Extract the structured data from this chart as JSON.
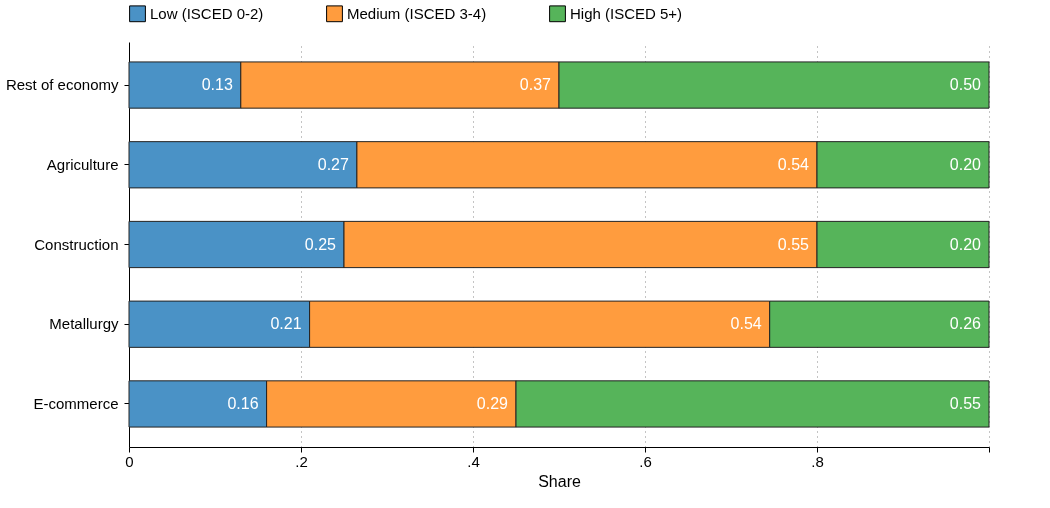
{
  "chart_data": {
    "type": "bar",
    "orientation": "horizontal",
    "stacked": true,
    "xlabel": "Share",
    "categories": [
      "Rest of economy",
      "Agriculture",
      "Construction",
      "Metallurgy",
      "E-commerce"
    ],
    "series": [
      {
        "name": "Low (ISCED 0-2)",
        "color": "#4a92c6",
        "values": [
          0.13,
          0.265,
          0.25,
          0.21,
          0.16
        ],
        "value_labels": [
          "0.13",
          "0.27",
          "0.25",
          "0.21",
          "0.16"
        ]
      },
      {
        "name": "Medium (ISCED 3-4)",
        "color": "#ff9c3e",
        "values": [
          0.37,
          0.535,
          0.55,
          0.535,
          0.29
        ],
        "value_labels": [
          "0.37",
          "0.54",
          "0.55",
          "0.54",
          "0.29"
        ]
      },
      {
        "name": "High (ISCED 5+)",
        "color": "#56b45a",
        "values": [
          0.5,
          0.2,
          0.2,
          0.255,
          0.55
        ],
        "value_labels": [
          "0.50",
          "0.20",
          "0.20",
          "0.26",
          "0.55"
        ]
      }
    ],
    "xlim": [
      0,
      1
    ],
    "xticks": [
      0,
      {
        "value": 0.2,
        "label": ".2"
      },
      {
        "value": 0.4,
        "label": ".4"
      },
      {
        "value": 0.6,
        "label": ".6"
      },
      {
        "value": 0.8,
        "label": ".8"
      },
      {
        "value": 1,
        "label": null
      }
    ],
    "grid": "x",
    "legend": "top"
  }
}
